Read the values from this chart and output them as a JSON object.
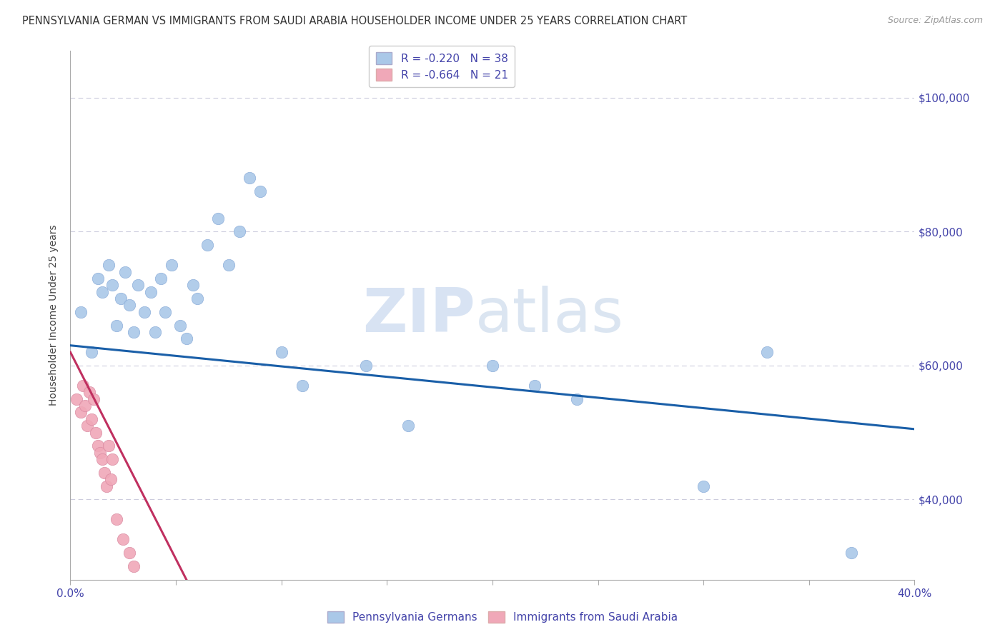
{
  "title": "PENNSYLVANIA GERMAN VS IMMIGRANTS FROM SAUDI ARABIA HOUSEHOLDER INCOME UNDER 25 YEARS CORRELATION CHART",
  "source": "Source: ZipAtlas.com",
  "ylabel": "Householder Income Under 25 years",
  "xlim": [
    0.0,
    0.4
  ],
  "ylim": [
    28000,
    107000
  ],
  "yticks": [
    40000,
    60000,
    80000,
    100000
  ],
  "ytick_labels": [
    "$40,000",
    "$60,000",
    "$80,000",
    "$100,000"
  ],
  "xticks": [
    0.0,
    0.05,
    0.1,
    0.15,
    0.2,
    0.25,
    0.3,
    0.35,
    0.4
  ],
  "xtick_labels_show": {
    "0.0": "0.0%",
    "0.4": "40.0%"
  },
  "blue_R": -0.22,
  "blue_N": 38,
  "pink_R": -0.664,
  "pink_N": 21,
  "blue_scatter_x": [
    0.005,
    0.01,
    0.013,
    0.015,
    0.018,
    0.02,
    0.022,
    0.024,
    0.026,
    0.028,
    0.03,
    0.032,
    0.035,
    0.038,
    0.04,
    0.043,
    0.045,
    0.048,
    0.052,
    0.055,
    0.058,
    0.06,
    0.065,
    0.07,
    0.075,
    0.08,
    0.085,
    0.09,
    0.1,
    0.11,
    0.14,
    0.16,
    0.2,
    0.22,
    0.24,
    0.3,
    0.33,
    0.37
  ],
  "blue_scatter_y": [
    68000,
    62000,
    73000,
    71000,
    75000,
    72000,
    66000,
    70000,
    74000,
    69000,
    65000,
    72000,
    68000,
    71000,
    65000,
    73000,
    68000,
    75000,
    66000,
    64000,
    72000,
    70000,
    78000,
    82000,
    75000,
    80000,
    88000,
    86000,
    62000,
    57000,
    60000,
    51000,
    60000,
    57000,
    55000,
    42000,
    62000,
    32000
  ],
  "pink_scatter_x": [
    0.003,
    0.005,
    0.006,
    0.007,
    0.008,
    0.009,
    0.01,
    0.011,
    0.012,
    0.013,
    0.014,
    0.015,
    0.016,
    0.017,
    0.018,
    0.019,
    0.02,
    0.022,
    0.025,
    0.028,
    0.03
  ],
  "pink_scatter_y": [
    55000,
    53000,
    57000,
    54000,
    51000,
    56000,
    52000,
    55000,
    50000,
    48000,
    47000,
    46000,
    44000,
    42000,
    48000,
    43000,
    46000,
    37000,
    34000,
    32000,
    30000
  ],
  "blue_line_x": [
    0.0,
    0.4
  ],
  "blue_line_y": [
    63000,
    50500
  ],
  "pink_line_x": [
    0.0,
    0.055
  ],
  "pink_line_y": [
    62000,
    28000
  ],
  "blue_color": "#aac8e8",
  "pink_color": "#f0a8b8",
  "blue_line_color": "#1a5fa8",
  "pink_line_color": "#c03060",
  "watermark_zip": "ZIP",
  "watermark_atlas": "atlas",
  "axis_color": "#4444aa",
  "ylabel_color": "#444444",
  "background_color": "#ffffff",
  "grid_color": "#ccccdd",
  "title_fontsize": 10.5,
  "source_fontsize": 9,
  "ylabel_fontsize": 10,
  "tick_fontsize": 11,
  "legend_fontsize": 11
}
